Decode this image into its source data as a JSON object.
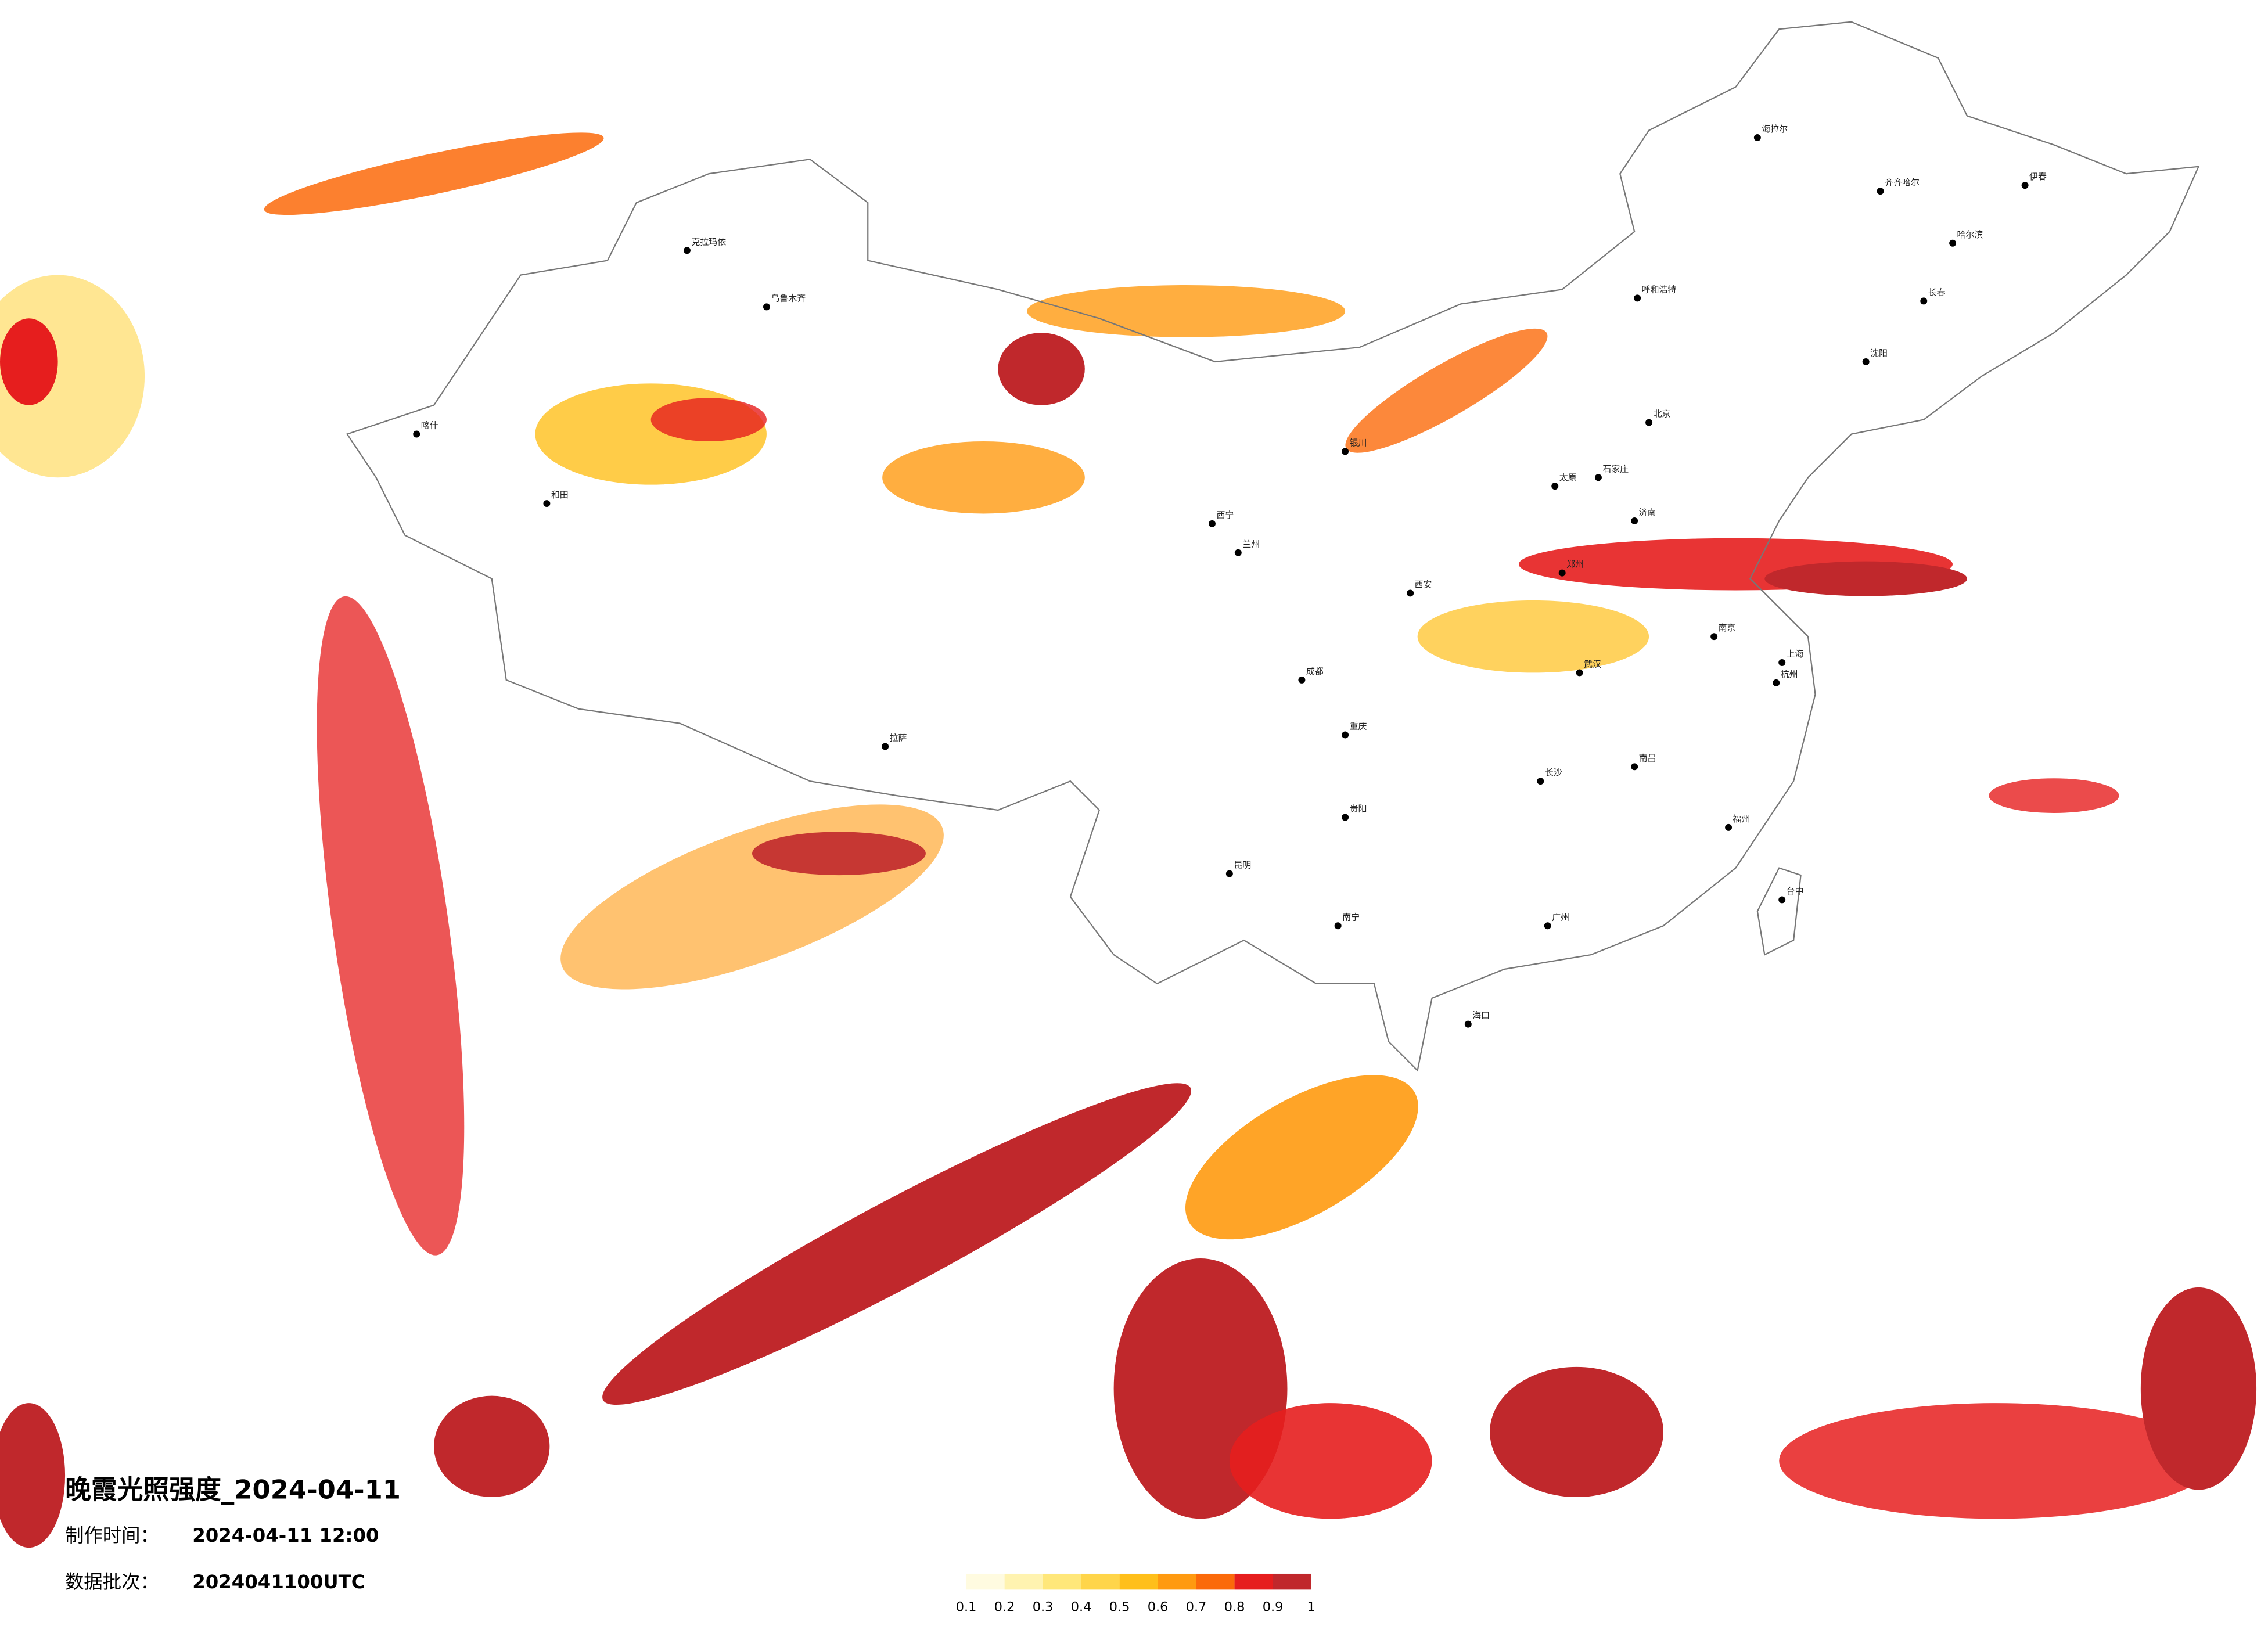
{
  "title": "晚霞光照强度_2024-04-11",
  "meta": [
    {
      "label": "制作时间：",
      "value": "2024-04-11 12:00"
    },
    {
      "label": "数据批次：",
      "value": "2024041100UTC"
    }
  ],
  "legend": {
    "colors": [
      "#fffbe0",
      "#fff3b0",
      "#ffe77a",
      "#ffd54a",
      "#ffbf1a",
      "#ff9a10",
      "#fb6a0a",
      "#e61e1e",
      "#c0282c"
    ],
    "ticks": [
      0.1,
      0.2,
      0.3,
      0.4,
      0.5,
      0.6,
      0.7,
      0.8,
      0.9,
      1
    ]
  },
  "cities": [
    "北京",
    "上海",
    "哈尔滨",
    "长春",
    "沈阳",
    "乌鲁木齐",
    "拉萨",
    "西宁",
    "兰州",
    "成都",
    "重庆",
    "昆明",
    "贵阳",
    "南宁",
    "广州",
    "海口",
    "台中",
    "武汉",
    "长沙",
    "南昌",
    "福州",
    "杭州",
    "南京",
    "济南",
    "郑州",
    "西安",
    "太原",
    "石家庄",
    "呼和浩特",
    "银川",
    "海拉尔",
    "喀什",
    "和田",
    "克拉玛依",
    "伊春",
    "齐齐哈尔"
  ]
}
